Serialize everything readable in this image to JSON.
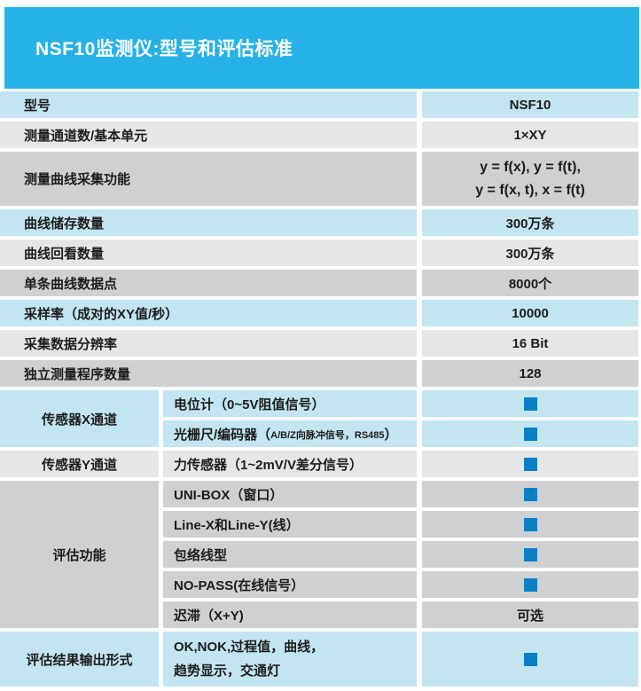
{
  "header": {
    "title": "NSF10监测仪:型号和评估标准"
  },
  "colors": {
    "header_bg": "#27B2E7",
    "row_blue": "#C3E5F1",
    "row_gray_light": "#E6E6E6",
    "row_gray_dark": "#CFD0D2",
    "check_blue": "#0A80C4",
    "text": "#1C1C1C",
    "header_text": "#FFFFFF",
    "page_bg": "#FFFFFF"
  },
  "table": {
    "simple_rows": [
      {
        "label": "型号",
        "value": "NSF10",
        "tone": "blue"
      },
      {
        "label": "测量通道数/基本单元",
        "value": "1×XY",
        "tone": "gray-light"
      },
      {
        "label": "测量曲线采集功能",
        "value_line1": "y = f(x), y = f(t),",
        "value_line2": "y = f(x, t), x = f(t)",
        "tone": "gray-dark"
      },
      {
        "label": "曲线储存数量",
        "value": "300万条",
        "tone": "blue"
      },
      {
        "label": "曲线回看数量",
        "value": "300万条",
        "tone": "gray-light"
      },
      {
        "label": "单条曲线数据点",
        "value": "8000个",
        "tone": "gray-dark"
      },
      {
        "label": "采样率（成对的XY值/秒）",
        "value": "10000",
        "tone": "blue"
      },
      {
        "label": "采集数据分辨率",
        "value": "16 Bit",
        "tone": "gray-light"
      },
      {
        "label": "独立测量程序数量",
        "value": "128",
        "tone": "gray-dark"
      }
    ],
    "groups": [
      {
        "label": "传感器X通道",
        "tone": "blue",
        "rows": [
          {
            "text": "电位计（0~5V阻值信号）",
            "note": "",
            "suffix": "",
            "value_type": "check"
          },
          {
            "text": "光栅尺/编码器（",
            "note": "A/B/Z向脉冲信号，RS485",
            "suffix": "）",
            "value_type": "check"
          }
        ]
      },
      {
        "label": "传感器Y通道",
        "tone": "gray-light",
        "rows": [
          {
            "text": "力传感器（1~2mV/V差分信号）",
            "note": "",
            "suffix": "",
            "value_type": "check"
          }
        ]
      },
      {
        "label": "评估功能",
        "tone": "gray-dark",
        "rows": [
          {
            "text": "UNI-BOX（窗口）",
            "note": "",
            "suffix": "",
            "value_type": "check"
          },
          {
            "text": "Line-X和Line-Y(线）",
            "note": "",
            "suffix": "",
            "value_type": "check"
          },
          {
            "text": "包络线型",
            "note": "",
            "suffix": "",
            "value_type": "check"
          },
          {
            "text": "NO-PASS(在线信号）",
            "note": "",
            "suffix": "",
            "value_type": "check"
          },
          {
            "text": "迟滞（X+Y)",
            "note": "",
            "suffix": "",
            "value_type": "text",
            "value": "可选"
          }
        ]
      },
      {
        "label": "评估结果输出形式",
        "tone": "blue",
        "rows": [
          {
            "text_line1": "OK,NOK,过程值，曲线，",
            "text_line2": "趋势显示，交通灯",
            "value_type": "check"
          }
        ]
      }
    ]
  }
}
